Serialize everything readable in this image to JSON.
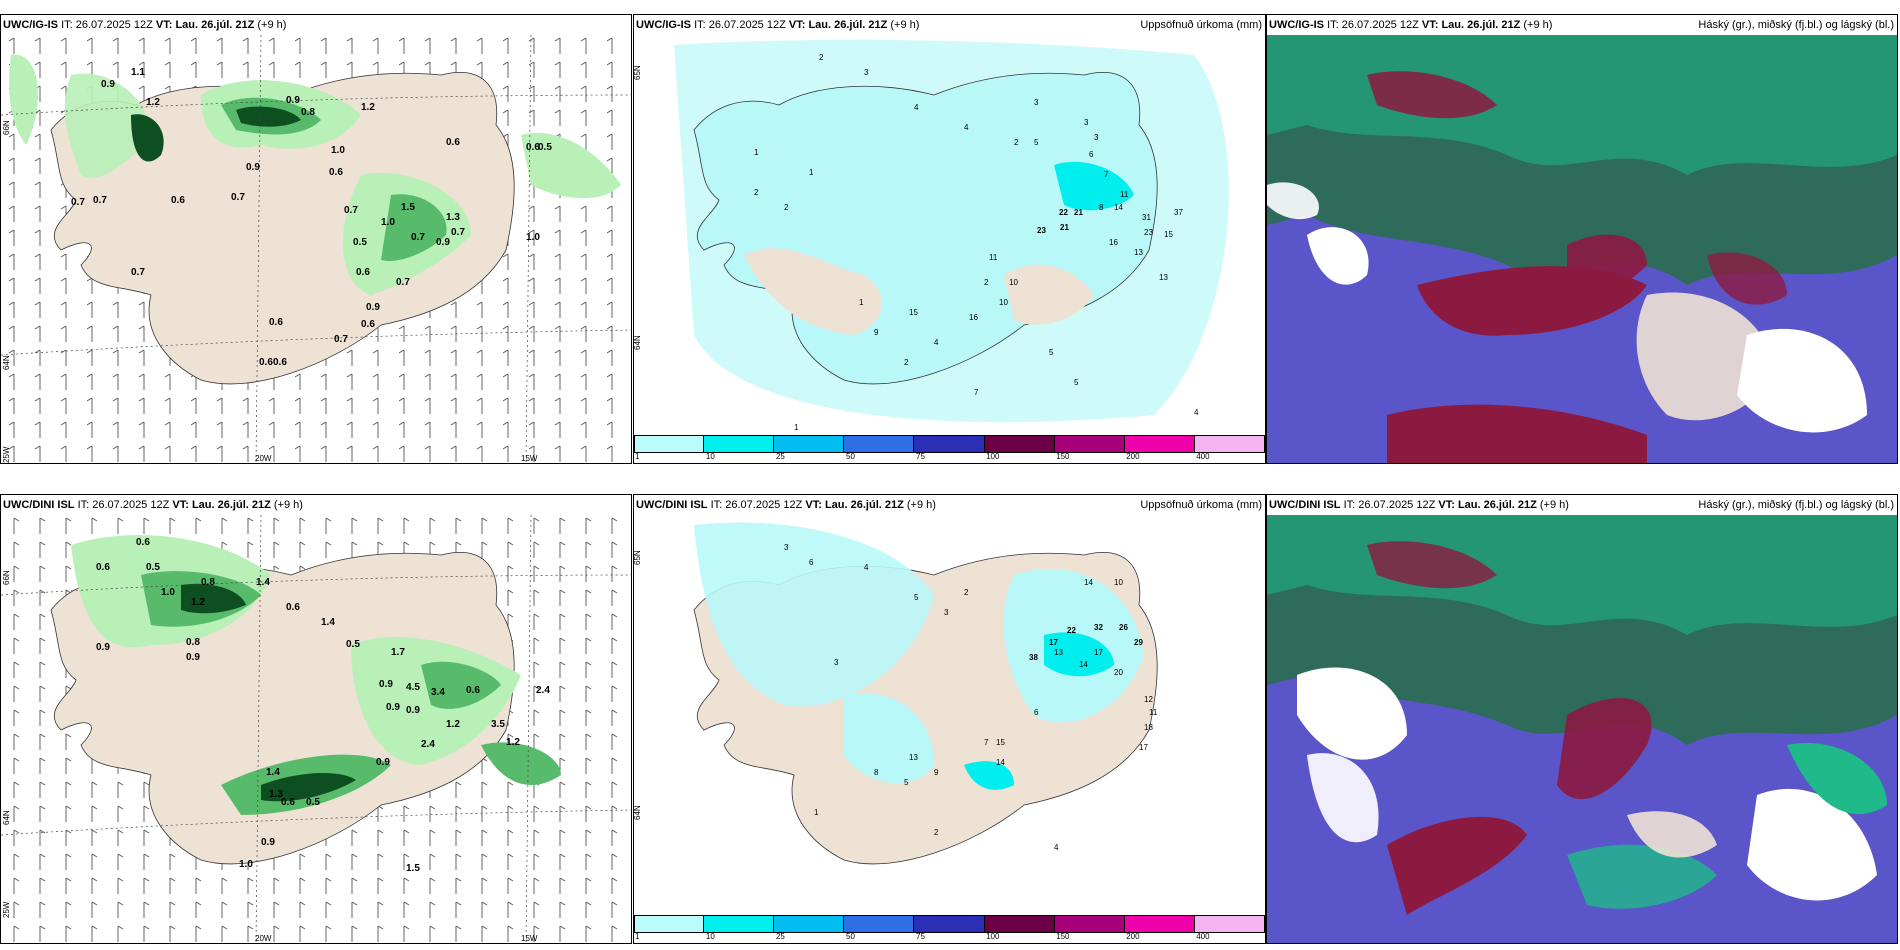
{
  "panels": [
    {
      "model": "UWC/IG-IS",
      "it_label": "IT:",
      "it": "26.07.2025 12Z",
      "vt_label": "VT:",
      "vt": "Lau. 26.júl. 21Z",
      "lead": "(+9 h)",
      "title_right": "",
      "axis": {
        "lat_top": "66N",
        "lat_bottom": "64N",
        "lon_left": "25W",
        "lon_mid": "20W",
        "lon_right": "15W"
      },
      "labels": [
        "0.9",
        "1.1",
        "1.2",
        "0.9",
        "0.7",
        "0.7",
        "0.6",
        "0.7",
        "0.9",
        "0.8",
        "1.2",
        "0.6",
        "1.0",
        "0.6",
        "0.7",
        "0.6",
        "0.5",
        "0.7",
        "1.0",
        "0.7",
        "1.3",
        "1.5",
        "0.7",
        "0.9",
        "1.0",
        "0.7",
        "0.6",
        "0.9",
        "0.6",
        "0.6",
        "0.7",
        "0.6",
        "0.5",
        "0.6"
      ]
    },
    {
      "model": "UWC/IG-IS",
      "it_label": "IT:",
      "it": "26.07.2025 12Z",
      "vt_label": "VT:",
      "vt": "Lau. 26.júl. 21Z",
      "lead": "(+9 h)",
      "title_right": "Uppsöfnuð úrkoma (mm)",
      "axis": {
        "lat_top": "65N",
        "lat_bottom": "64N"
      },
      "labels": [
        "2",
        "3",
        "4",
        "4",
        "2",
        "5",
        "3",
        "3",
        "6",
        "7",
        "11",
        "8",
        "14",
        "22",
        "21",
        "23",
        "21",
        "31",
        "37",
        "23",
        "15",
        "16",
        "13",
        "11",
        "10",
        "10",
        "13",
        "16",
        "15",
        "9",
        "4",
        "5",
        "2",
        "1",
        "1",
        "2",
        "3",
        "7",
        "2",
        "5",
        "1",
        "4",
        "2",
        "1"
      ]
    },
    {
      "model": "UWC/IG-IS",
      "it_label": "IT:",
      "it": "26.07.2025 12Z",
      "vt_label": "VT:",
      "vt": "Lau. 26.júl. 21Z",
      "lead": "(+9 h)",
      "title_right": "Háský (gr.), miðský (fj.bl.) og lágský (bl.)"
    },
    {
      "model": "UWC/DINI ISL",
      "it_label": "IT:",
      "it": "26.07.2025 12Z",
      "vt_label": "VT:",
      "vt": "Lau. 26.júl. 21Z",
      "lead": "(+9 h)",
      "title_right": "",
      "axis": {
        "lat_top": "66N",
        "lat_bottom": "64N",
        "lon_left": "25W",
        "lon_mid": "20W",
        "lon_right": "15W"
      },
      "labels": [
        "0.6",
        "0.6",
        "0.5",
        "1.0",
        "0.8",
        "1.2",
        "1.4",
        "0.6",
        "0.8",
        "0.9",
        "0.9",
        "1.4",
        "0.5",
        "1.7",
        "0.9",
        "4.5",
        "3.4",
        "0.6",
        "0.9",
        "0.9",
        "1.2",
        "2.4",
        "3.5",
        "1.2",
        "0.6",
        "0.5",
        "1.4",
        "1.3",
        "0.9",
        "0.9",
        "1.0",
        "1.5",
        "2.4"
      ]
    },
    {
      "model": "UWC/DINI ISL",
      "it_label": "IT:",
      "it": "26.07.2025 12Z",
      "vt_label": "VT:",
      "vt": "Lau. 26.júl. 21Z",
      "lead": "(+9 h)",
      "title_right": "Uppsöfnuð úrkoma (mm)",
      "axis": {
        "lat_top": "65N",
        "lat_bottom": "64N"
      },
      "labels": [
        "3",
        "6",
        "4",
        "5",
        "3",
        "2",
        "14",
        "10",
        "22",
        "32",
        "26",
        "29",
        "17",
        "38",
        "13",
        "17",
        "14",
        "20",
        "12",
        "11",
        "18",
        "17",
        "15",
        "14",
        "9",
        "6",
        "5",
        "3",
        "2",
        "1",
        "4",
        "7",
        "8",
        "13"
      ]
    },
    {
      "model": "UWC/DINI ISL",
      "it_label": "IT:",
      "it": "26.07.2025 12Z",
      "vt_label": "VT:",
      "vt": "Lau. 26.júl. 21Z",
      "lead": "(+9 h)",
      "title_right": "Háský (gr.), miðský (fj.bl.) og lágský (bl.)"
    }
  ],
  "colorbar": {
    "ticks": [
      "1",
      "10",
      "25",
      "50",
      "75",
      "100",
      "150",
      "200",
      "400"
    ],
    "colors": [
      "#b9fbfb",
      "#00eeee",
      "#00bff0",
      "#2e6fe6",
      "#2a2fb5",
      "#6b0046",
      "#a6007a",
      "#ee00aa",
      "#f6b3f0"
    ]
  },
  "colors": {
    "land": "#ede2d4",
    "precip_light": "#b8f0b8",
    "precip_med": "#58bb6c",
    "precip_dark": "#0e4f22",
    "precip_cyan": "#b9f8f8",
    "cloud_high": "#1fb98a",
    "cloud_mid": "#8c1a40",
    "cloud_low": "#5a55c8"
  }
}
